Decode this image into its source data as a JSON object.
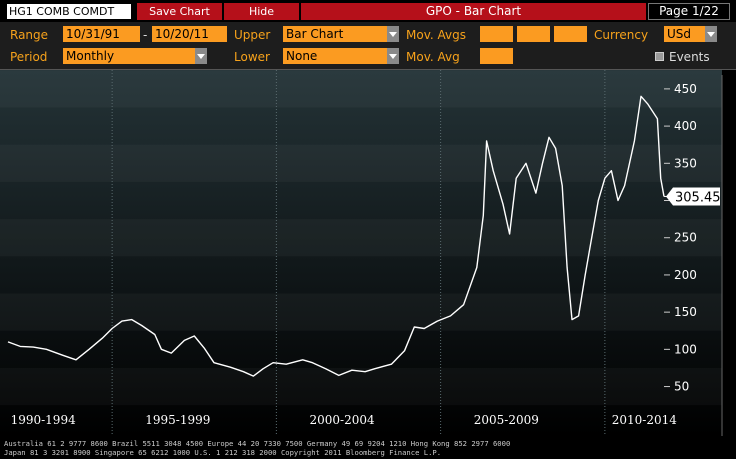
{
  "header": {
    "ticker": "HG1 COMB COMDT",
    "save_chart": "Save Chart",
    "hide": "Hide",
    "title": "GPO - Bar Chart",
    "page": "Page 1/22"
  },
  "controls": {
    "range_label": "Range",
    "range_start": "10/31/91",
    "range_dash": "-",
    "range_end": "10/20/11",
    "upper_label": "Upper",
    "upper_value": "Bar Chart",
    "mov_avgs_label": "Mov. Avgs",
    "currency_label": "Currency",
    "currency_value": "USd",
    "period_label": "Period",
    "period_value": "Monthly",
    "lower_label": "Lower",
    "lower_value": "None",
    "mov_avg_label": "Mov. Avg",
    "events_label": "Events"
  },
  "colors": {
    "accent": "#fb9b21",
    "red": "#b5101a",
    "plot_top": "#243337",
    "plot_bottom": "#000000"
  },
  "footer": {
    "line1": "Australia 61 2 9777 8600 Brazil 5511 3048 4500 Europe 44 20 7330 7500 Germany 49 69 9204 1210 Hong Kong 852 2977 6000",
    "line2": "Japan 81 3 3201 8900          Singapore 65 6212 1000          U.S. 1 212 318 2000          Copyright 2011 Bloomberg Finance L.P."
  },
  "chart_data": {
    "type": "line",
    "title": "",
    "xlabel": "",
    "ylabel": "",
    "x_range": [
      1991.83,
      2011.8
    ],
    "ylim": [
      40,
      470
    ],
    "y_ticks": [
      50,
      100,
      150,
      200,
      250,
      300,
      350,
      400,
      450
    ],
    "y_tick_labels": [
      "50",
      "100",
      "150",
      "200",
      "250",
      "300",
      "350",
      "400",
      "450"
    ],
    "x_tick_labels": [
      "1990-1994",
      "1995-1999",
      "2000-2004",
      "2005-2009",
      "2010-2014"
    ],
    "x_tick_centers": [
      1992.9,
      1997.0,
      2002.0,
      2007.0,
      2011.2
    ],
    "last_value_label": "305.45",
    "last_value": 305.45,
    "grid": false,
    "series": [
      {
        "values": [
          [
            1991.83,
            110
          ],
          [
            1992.2,
            104
          ],
          [
            1992.6,
            103
          ],
          [
            1993.0,
            100
          ],
          [
            1993.5,
            92
          ],
          [
            1993.9,
            86
          ],
          [
            1994.3,
            100
          ],
          [
            1994.7,
            115
          ],
          [
            1995.0,
            128
          ],
          [
            1995.3,
            138
          ],
          [
            1995.6,
            140
          ],
          [
            1995.9,
            132
          ],
          [
            1996.3,
            120
          ],
          [
            1996.5,
            100
          ],
          [
            1996.8,
            95
          ],
          [
            1997.2,
            112
          ],
          [
            1997.5,
            118
          ],
          [
            1997.8,
            102
          ],
          [
            1998.1,
            82
          ],
          [
            1998.6,
            76
          ],
          [
            1999.0,
            70
          ],
          [
            1999.3,
            64
          ],
          [
            1999.6,
            74
          ],
          [
            1999.9,
            82
          ],
          [
            2000.3,
            80
          ],
          [
            2000.8,
            86
          ],
          [
            2001.1,
            82
          ],
          [
            2001.5,
            74
          ],
          [
            2001.9,
            65
          ],
          [
            2002.3,
            72
          ],
          [
            2002.7,
            70
          ],
          [
            2003.0,
            74
          ],
          [
            2003.5,
            80
          ],
          [
            2003.9,
            98
          ],
          [
            2004.2,
            130
          ],
          [
            2004.5,
            128
          ],
          [
            2004.9,
            138
          ],
          [
            2005.3,
            145
          ],
          [
            2005.7,
            160
          ],
          [
            2006.1,
            210
          ],
          [
            2006.3,
            280
          ],
          [
            2006.4,
            380
          ],
          [
            2006.6,
            340
          ],
          [
            2006.9,
            295
          ],
          [
            2007.1,
            255
          ],
          [
            2007.3,
            330
          ],
          [
            2007.6,
            350
          ],
          [
            2007.9,
            310
          ],
          [
            2008.1,
            350
          ],
          [
            2008.3,
            385
          ],
          [
            2008.5,
            370
          ],
          [
            2008.7,
            320
          ],
          [
            2008.85,
            210
          ],
          [
            2009.0,
            140
          ],
          [
            2009.2,
            145
          ],
          [
            2009.4,
            200
          ],
          [
            2009.6,
            250
          ],
          [
            2009.8,
            300
          ],
          [
            2010.0,
            330
          ],
          [
            2010.2,
            340
          ],
          [
            2010.4,
            300
          ],
          [
            2010.6,
            320
          ],
          [
            2010.9,
            380
          ],
          [
            2011.1,
            440
          ],
          [
            2011.3,
            430
          ],
          [
            2011.45,
            420
          ],
          [
            2011.6,
            410
          ],
          [
            2011.7,
            330
          ],
          [
            2011.8,
            305.45
          ]
        ]
      }
    ]
  }
}
